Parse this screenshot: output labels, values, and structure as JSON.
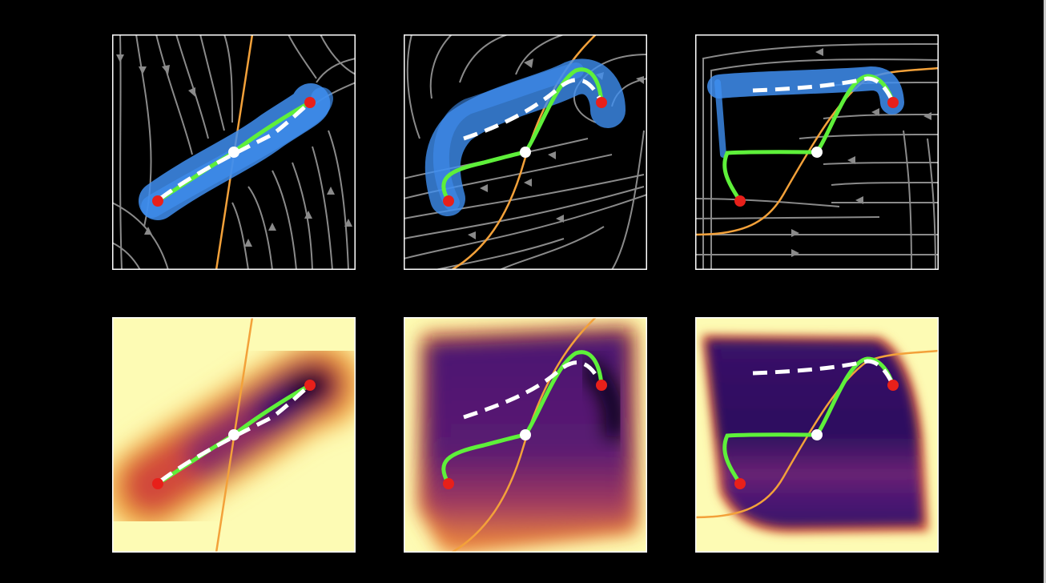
{
  "figure": {
    "rows": [
      "flow-streamlines-with-sample-trajectories",
      "density-heatmap"
    ],
    "panel_count": 6,
    "colors": {
      "background": "#000000",
      "frame": "#ffffff",
      "streamline": "#8a8a8a",
      "samples": "#3f8ef0",
      "optimal_path": "#5ef03a",
      "mean_path": "#ffffff",
      "endpoint": "#e8201a",
      "midpoint": "#ffffff",
      "nullcline": "#f3a13a",
      "heatmap_colormap": "inferno"
    },
    "legend": []
  }
}
